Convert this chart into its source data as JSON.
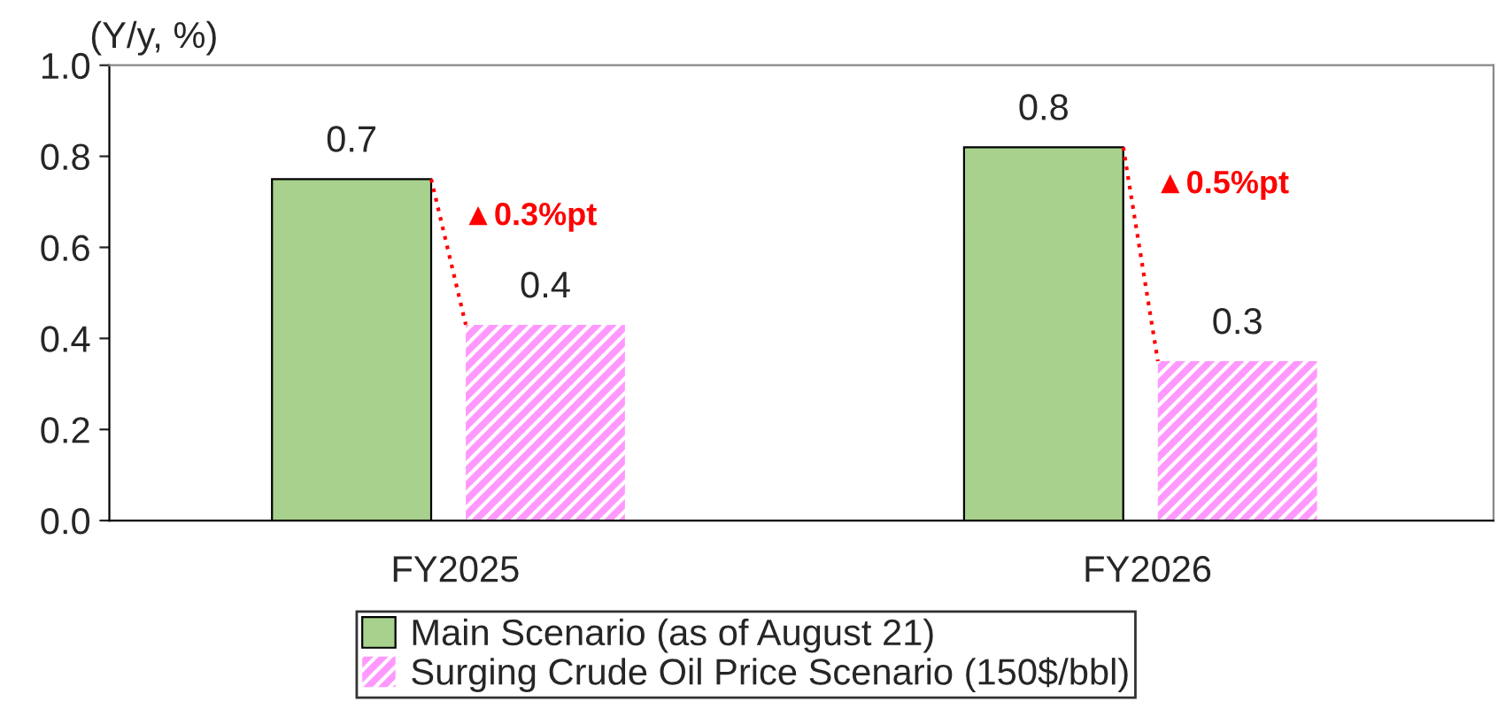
{
  "chart_data": {
    "type": "bar",
    "ylabel": "(Y/y, %)",
    "categories": [
      "FY2025",
      "FY2026"
    ],
    "series": [
      {
        "name": "Main Scenario (as of August 21)",
        "color": "#a9d18e",
        "values": [
          0.75,
          0.82
        ],
        "value_labels": [
          "0.7",
          "0.8"
        ]
      },
      {
        "name": "Surging Crude Oil Price Scenario (150$/bbl)",
        "color": "#ff99ff",
        "values": [
          0.43,
          0.35
        ],
        "value_labels": [
          "0.4",
          "0.3"
        ]
      }
    ],
    "annotations": [
      "▲0.3%pt",
      "▲0.5%pt"
    ],
    "ylim": [
      0,
      1.0
    ],
    "yticks": [
      {
        "value": 0,
        "label": "0.0"
      },
      0.2,
      0.4,
      0.6,
      0.8,
      {
        "value": 1.0,
        "label": "1.0"
      }
    ],
    "grid": false,
    "legend": "bottom"
  }
}
